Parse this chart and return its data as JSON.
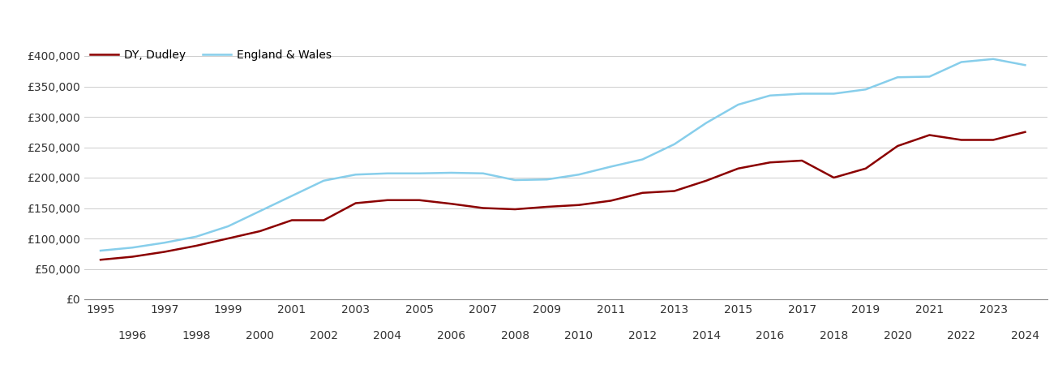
{
  "legend_labels": [
    "DY, Dudley",
    "England & Wales"
  ],
  "dudley_color": "#8b0000",
  "england_color": "#87ceeb",
  "background_color": "#ffffff",
  "grid_color": "#cccccc",
  "years": [
    1995,
    1996,
    1997,
    1998,
    1999,
    2000,
    2001,
    2002,
    2003,
    2004,
    2005,
    2006,
    2007,
    2008,
    2009,
    2010,
    2011,
    2012,
    2013,
    2014,
    2015,
    2016,
    2017,
    2018,
    2019,
    2020,
    2021,
    2022,
    2023,
    2024
  ],
  "dudley": [
    65000,
    70000,
    78000,
    88000,
    100000,
    112000,
    130000,
    130000,
    158000,
    163000,
    163000,
    157000,
    150000,
    148000,
    152000,
    155000,
    162000,
    175000,
    178000,
    195000,
    215000,
    225000,
    228000,
    200000,
    215000,
    252000,
    270000,
    262000,
    262000,
    275000
  ],
  "england_wales": [
    80000,
    85000,
    93000,
    103000,
    120000,
    145000,
    170000,
    195000,
    205000,
    207000,
    207000,
    208000,
    207000,
    196000,
    197000,
    205000,
    218000,
    230000,
    255000,
    290000,
    320000,
    335000,
    338000,
    338000,
    345000,
    365000,
    366000,
    390000,
    395000,
    385000
  ],
  "ylim": [
    0,
    420000
  ],
  "yticks": [
    0,
    50000,
    100000,
    150000,
    200000,
    250000,
    300000,
    350000,
    400000
  ],
  "ytick_labels": [
    "£0",
    "£50,000",
    "£100,000",
    "£150,000",
    "£200,000",
    "£250,000",
    "£300,000",
    "£350,000",
    "£400,000"
  ],
  "xtick_odd": [
    1995,
    1997,
    1999,
    2001,
    2003,
    2005,
    2007,
    2009,
    2011,
    2013,
    2015,
    2017,
    2019,
    2021,
    2023
  ],
  "xtick_even": [
    1996,
    1998,
    2000,
    2002,
    2004,
    2006,
    2008,
    2010,
    2012,
    2014,
    2016,
    2018,
    2020,
    2022,
    2024
  ],
  "xlim": [
    1994.5,
    2024.7
  ],
  "line_width": 1.8,
  "font_size": 10
}
